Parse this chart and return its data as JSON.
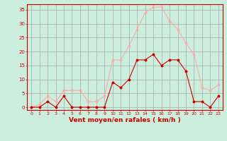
{
  "x": [
    0,
    1,
    2,
    3,
    4,
    5,
    6,
    7,
    8,
    9,
    10,
    11,
    12,
    13,
    14,
    15,
    16,
    17,
    18,
    19,
    20,
    21,
    22,
    23
  ],
  "wind_avg": [
    0,
    0,
    2,
    0,
    4,
    0,
    0,
    0,
    0,
    0,
    9,
    7,
    10,
    17,
    17,
    19,
    15,
    17,
    17,
    13,
    2,
    2,
    0,
    4
  ],
  "wind_gust": [
    0,
    1,
    4,
    2,
    6,
    6,
    6,
    2,
    2,
    4,
    17,
    17,
    22,
    28,
    34,
    36,
    36,
    31,
    28,
    23,
    19,
    7,
    6,
    8
  ],
  "color_avg": "#cc0000",
  "color_gust": "#ffaaaa",
  "bg_color": "#cceedd",
  "grid_color": "#aaaaaa",
  "xlabel": "Vent moyen/en rafales ( km/h )",
  "xlabel_color": "#cc0000",
  "yticks": [
    0,
    5,
    10,
    15,
    20,
    25,
    30,
    35
  ],
  "xticks": [
    0,
    1,
    2,
    3,
    4,
    5,
    6,
    7,
    8,
    9,
    10,
    11,
    12,
    13,
    14,
    15,
    16,
    17,
    18,
    19,
    20,
    21,
    22,
    23
  ],
  "ylim": [
    -1,
    37
  ],
  "xlim": [
    -0.5,
    23.5
  ]
}
